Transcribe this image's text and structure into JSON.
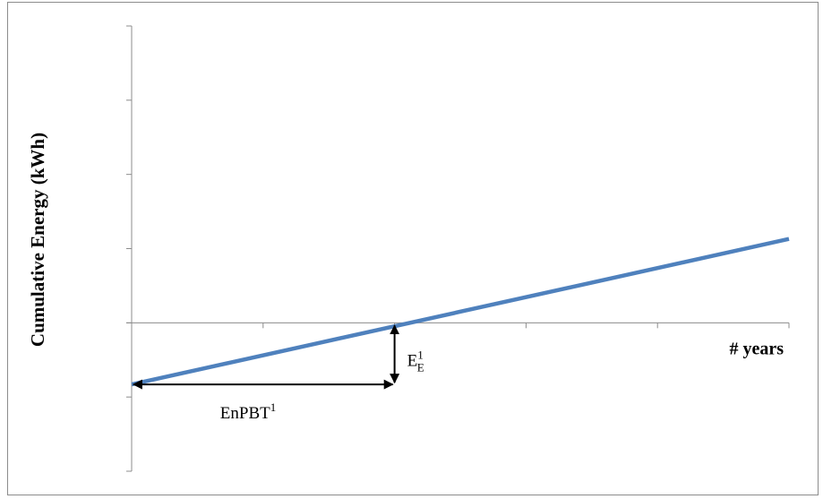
{
  "chart_data": {
    "type": "line",
    "title": "",
    "xlabel": "# years",
    "ylabel": "Cumulative Energy (kWh)",
    "xlim": [
      0,
      5
    ],
    "ylim": [
      -2,
      4
    ],
    "grid": false,
    "legend": "none",
    "x_ticks": [
      0,
      1,
      2,
      3,
      4,
      5
    ],
    "y_ticks": [
      -2,
      -1,
      0,
      1,
      2,
      3,
      4
    ],
    "series": [
      {
        "x": [
          0,
          5
        ],
        "y": [
          -0.83,
          1.13
        ],
        "color": "#4f81bd"
      }
    ],
    "breakeven_x": 2.0,
    "annotations": {
      "enpbt": {
        "base": "EnPBT",
        "sup": "1"
      },
      "energy": {
        "base": "E",
        "sup": "1",
        "sub": "E"
      }
    },
    "colors": {
      "axis": "#8c8c8c",
      "line": "#4f81bd",
      "arrow": "#000000"
    }
  }
}
